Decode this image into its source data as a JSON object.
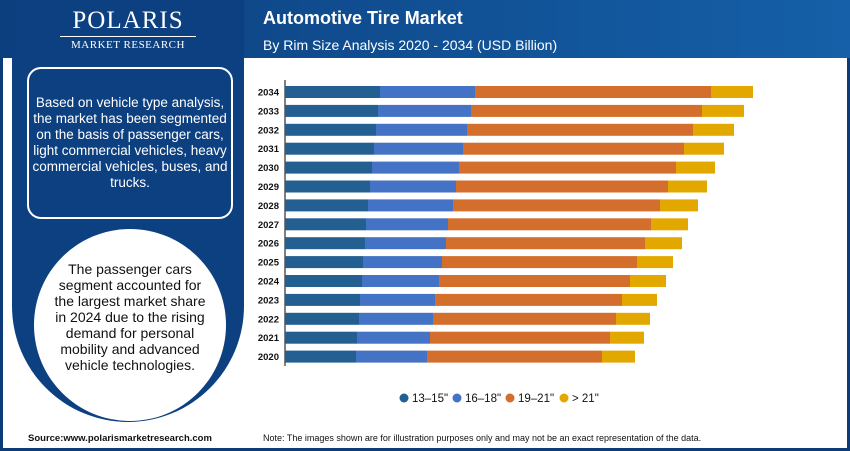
{
  "brand": {
    "name": "POLARIS",
    "tagline": "MARKET RESEARCH"
  },
  "header": {
    "title": "Automotive Tire Market",
    "subtitle": "By Rim Size Analysis 2020 - 2034 (USD Billion)"
  },
  "sidebar": {
    "segment_text": "Based on vehicle type analysis, the market has been segmented on the basis of passenger cars, light commercial vehicles, heavy commercial vehicles, buses, and trucks.",
    "highlight_text": "The passenger cars segment accounted for the largest market share in 2024 due to the rising demand for personal mobility and advanced vehicle technologies."
  },
  "footer": {
    "source": "Source:www.polarismarketresearch.com",
    "note": "Note: The images shown are for illustration purposes only and may not be an exact representation of the data."
  },
  "chart_data": {
    "type": "bar",
    "orientation": "horizontal",
    "stacked": true,
    "grid": false,
    "legend": "bottom",
    "categories": [
      "2034",
      "2033",
      "2032",
      "2031",
      "2030",
      "2029",
      "2028",
      "2027",
      "2026",
      "2025",
      "2024",
      "2023",
      "2022",
      "2021",
      "2020"
    ],
    "series": [
      {
        "name": "13–15\"",
        "color": "#245f91",
        "values": [
          9.5,
          9.3,
          9.1,
          8.9,
          8.7,
          8.5,
          8.3,
          8.1,
          8.0,
          7.8,
          7.7,
          7.5,
          7.4,
          7.2,
          7.1
        ]
      },
      {
        "name": "16–18\"",
        "color": "#4472c4",
        "values": [
          9.5,
          9.3,
          9.1,
          8.9,
          8.7,
          8.6,
          8.5,
          8.2,
          8.1,
          7.9,
          7.7,
          7.5,
          7.4,
          7.3,
          7.1
        ]
      },
      {
        "name": "19–21\"",
        "color": "#d46e2c",
        "values": [
          23.6,
          23.1,
          22.6,
          22.1,
          21.7,
          21.2,
          20.7,
          20.3,
          19.9,
          19.5,
          19.1,
          18.7,
          18.3,
          18.0,
          17.5
        ]
      },
      {
        "name": "> 21\"",
        "color": "#e3a800",
        "values": [
          4.2,
          4.2,
          4.1,
          4.0,
          3.9,
          3.9,
          3.8,
          3.7,
          3.7,
          3.6,
          3.6,
          3.5,
          3.4,
          3.4,
          3.3
        ]
      }
    ]
  }
}
